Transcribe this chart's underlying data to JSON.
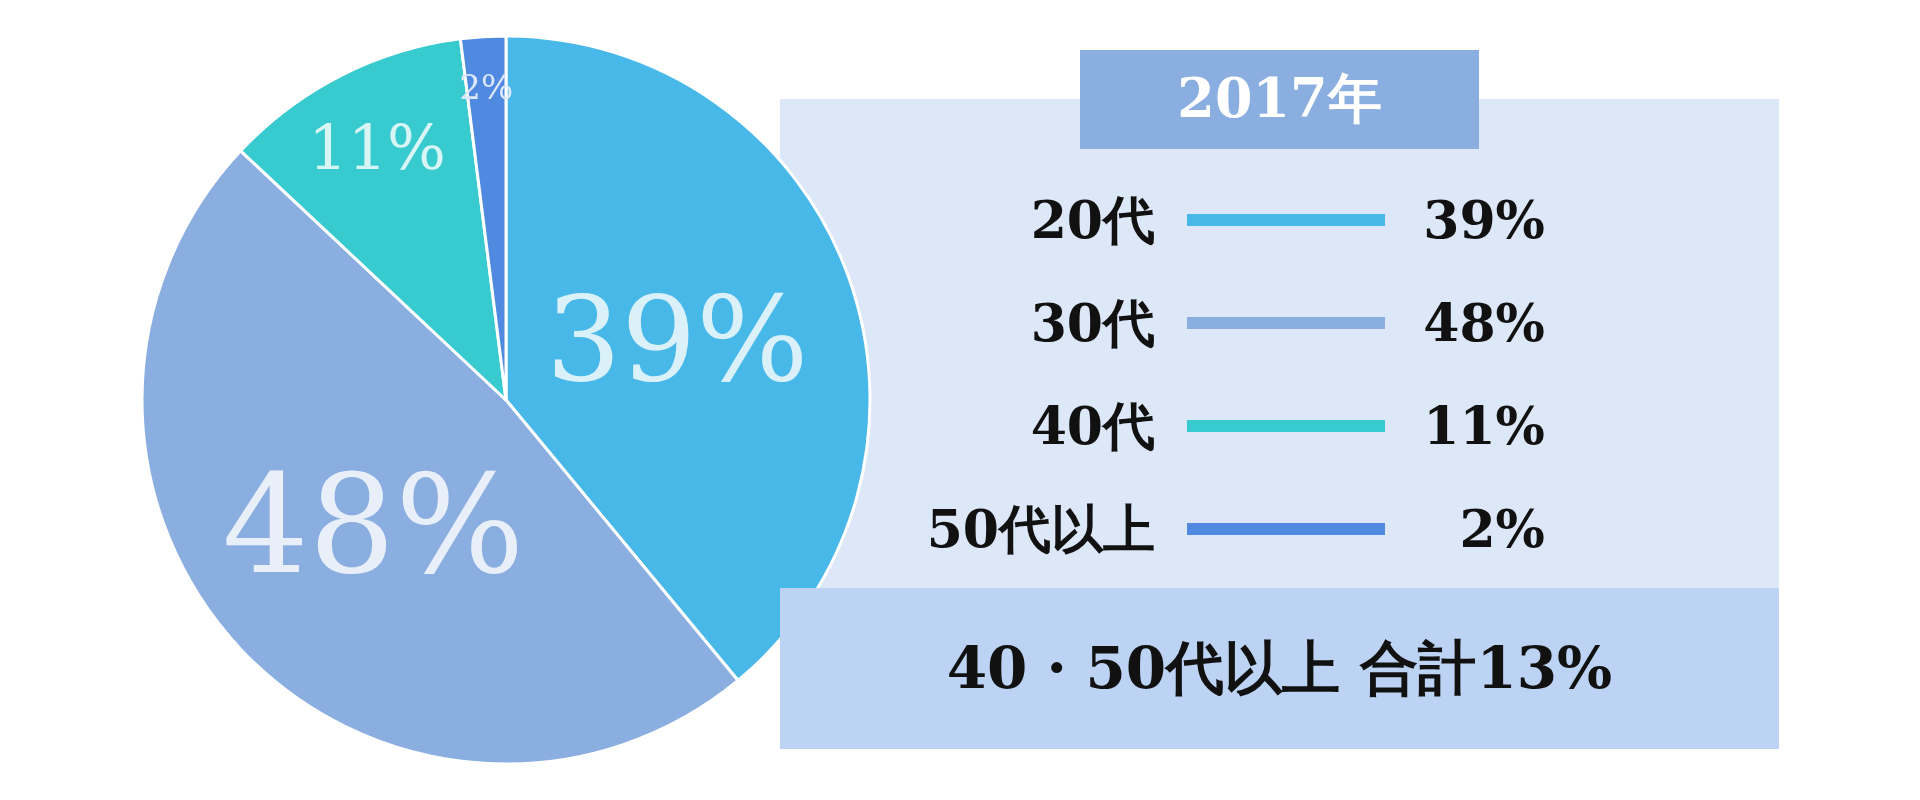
{
  "chart_data": {
    "type": "pie",
    "legend_title": "2017年",
    "legend": "right",
    "categories": [
      "20代",
      "30代",
      "40代",
      "50代以上"
    ],
    "values": [
      39,
      48,
      11,
      2
    ],
    "value_labels": [
      "39%",
      "48%",
      "11%",
      "2%"
    ],
    "colors": [
      "#47b8e8",
      "#8aaee0",
      "#37cbcf",
      "#4f8ae0"
    ],
    "annotations": [
      "40・50代以上 合計13%"
    ]
  }
}
